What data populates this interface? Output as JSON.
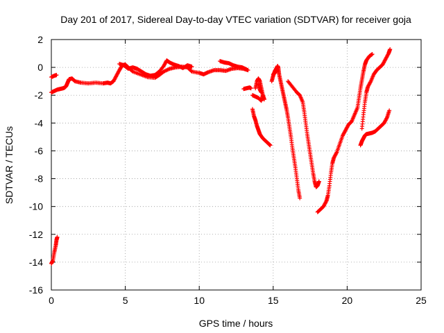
{
  "chart_data": {
    "type": "scatter",
    "title": "Day 201 of 2017, Sidereal Day-to-day VTEC variation (SDTVAR) for receiver goja",
    "xlabel": "GPS time / hours",
    "ylabel": "SDTVAR / TECUs",
    "xlim": [
      0,
      25
    ],
    "ylim": [
      -16,
      2
    ],
    "xticks": [
      "0",
      "5",
      "10",
      "15",
      "20",
      "25"
    ],
    "yticks": [
      "2",
      "0",
      "-2",
      "-4",
      "-6",
      "-8",
      "-10",
      "-12",
      "-14",
      "-16"
    ],
    "grid": true,
    "legend": "none",
    "marker": "+",
    "series": [
      {
        "color": "#ff0000",
        "segments": [
          [
            [
              0.0,
              -14.1
            ],
            [
              0.1,
              -13.9
            ],
            [
              0.2,
              -13.3
            ],
            [
              0.3,
              -12.8
            ],
            [
              0.35,
              -12.4
            ],
            [
              0.4,
              -12.2
            ]
          ],
          [
            [
              0.0,
              -1.8
            ],
            [
              0.2,
              -1.7
            ],
            [
              0.4,
              -1.6
            ],
            [
              0.6,
              -1.55
            ],
            [
              0.8,
              -1.5
            ],
            [
              0.9,
              -1.45
            ],
            [
              1.0,
              -1.35
            ],
            [
              1.1,
              -1.1
            ],
            [
              1.2,
              -0.85
            ],
            [
              1.4,
              -0.8
            ],
            [
              1.6,
              -1.0
            ],
            [
              2.0,
              -1.1
            ],
            [
              2.5,
              -1.15
            ],
            [
              3.0,
              -1.1
            ],
            [
              3.5,
              -1.15
            ],
            [
              3.8,
              -1.1
            ],
            [
              4.0,
              -1.15
            ],
            [
              4.2,
              -1.0
            ],
            [
              4.4,
              -0.6
            ],
            [
              4.6,
              -0.2
            ],
            [
              4.8,
              0.15
            ],
            [
              5.0,
              0.2
            ],
            [
              5.2,
              0.0
            ],
            [
              5.5,
              -0.3
            ],
            [
              6.0,
              -0.5
            ],
            [
              6.5,
              -0.7
            ],
            [
              7.0,
              -0.75
            ],
            [
              7.3,
              -0.55
            ],
            [
              7.6,
              -0.3
            ],
            [
              8.0,
              -0.1
            ],
            [
              8.4,
              0.0
            ],
            [
              8.8,
              0.05
            ],
            [
              9.2,
              0.0
            ],
            [
              9.5,
              -0.3
            ],
            [
              10.0,
              -0.4
            ],
            [
              10.3,
              -0.5
            ],
            [
              10.6,
              -0.35
            ],
            [
              11.0,
              -0.2
            ],
            [
              11.4,
              -0.2
            ],
            [
              11.8,
              -0.25
            ],
            [
              12.2,
              -0.1
            ],
            [
              12.6,
              -0.05
            ],
            [
              13.0,
              -0.1
            ],
            [
              13.3,
              -0.2
            ]
          ],
          [
            [
              0.0,
              -0.7
            ],
            [
              0.2,
              -0.6
            ],
            [
              0.35,
              -0.55
            ]
          ],
          [
            [
              4.6,
              0.25
            ],
            [
              4.9,
              0.15
            ],
            [
              5.2,
              -0.1
            ],
            [
              5.5,
              0.0
            ],
            [
              5.8,
              -0.1
            ],
            [
              6.1,
              -0.3
            ],
            [
              6.4,
              -0.5
            ],
            [
              6.7,
              -0.6
            ],
            [
              7.0,
              -0.55
            ],
            [
              7.3,
              -0.3
            ],
            [
              7.6,
              0.1
            ],
            [
              7.8,
              0.5
            ],
            [
              8.0,
              0.35
            ],
            [
              8.3,
              0.2
            ],
            [
              8.6,
              0.1
            ],
            [
              8.9,
              -0.05
            ],
            [
              9.2,
              0.15
            ],
            [
              9.5,
              0.05
            ]
          ],
          [
            [
              11.4,
              0.45
            ],
            [
              11.7,
              0.35
            ],
            [
              12.0,
              0.3
            ],
            [
              12.3,
              0.15
            ],
            [
              12.6,
              0.05
            ],
            [
              12.9,
              0.0
            ],
            [
              13.2,
              -0.15
            ]
          ],
          [
            [
              13.0,
              -1.55
            ],
            [
              13.2,
              -1.5
            ],
            [
              13.4,
              -1.45
            ],
            [
              13.5,
              -1.5
            ]
          ],
          [
            [
              13.8,
              -1.5
            ],
            [
              13.9,
              -1.0
            ],
            [
              14.0,
              -0.8
            ],
            [
              14.1,
              -1.0
            ],
            [
              14.2,
              -1.5
            ],
            [
              14.3,
              -2.0
            ],
            [
              14.4,
              -2.3
            ]
          ],
          [
            [
              13.6,
              -2.0
            ],
            [
              13.8,
              -2.1
            ],
            [
              14.0,
              -2.2
            ],
            [
              14.2,
              -2.4
            ],
            [
              14.3,
              -2.0
            ]
          ],
          [
            [
              13.6,
              -3.0
            ],
            [
              13.7,
              -3.5
            ],
            [
              13.8,
              -3.8
            ],
            [
              13.9,
              -4.2
            ],
            [
              14.0,
              -4.5
            ],
            [
              14.1,
              -4.8
            ],
            [
              14.3,
              -5.1
            ],
            [
              14.5,
              -5.3
            ],
            [
              14.7,
              -5.5
            ],
            [
              14.8,
              -5.6
            ]
          ],
          [
            [
              14.0,
              -1.2
            ],
            [
              14.1,
              -1.6
            ],
            [
              14.2,
              -1.8
            ]
          ],
          [
            [
              14.9,
              -1.0
            ],
            [
              15.0,
              -0.6
            ],
            [
              15.1,
              -0.3
            ],
            [
              15.2,
              -0.1
            ],
            [
              15.3,
              0.1
            ],
            [
              15.35,
              -0.05
            ],
            [
              15.4,
              -0.5
            ],
            [
              15.5,
              -1.0
            ],
            [
              15.6,
              -1.5
            ],
            [
              15.7,
              -2.0
            ],
            [
              15.8,
              -2.5
            ],
            [
              15.9,
              -3.0
            ],
            [
              16.0,
              -3.6
            ],
            [
              16.1,
              -4.3
            ],
            [
              16.2,
              -5.0
            ],
            [
              16.3,
              -5.8
            ],
            [
              16.4,
              -6.5
            ],
            [
              16.5,
              -7.2
            ],
            [
              16.6,
              -8.0
            ],
            [
              16.7,
              -8.8
            ],
            [
              16.8,
              -9.4
            ]
          ],
          [
            [
              15.0,
              -0.5
            ],
            [
              15.2,
              -0.3
            ],
            [
              15.3,
              -0.2
            ]
          ],
          [
            [
              16.0,
              -1.0
            ],
            [
              16.3,
              -1.4
            ],
            [
              16.6,
              -1.8
            ],
            [
              16.8,
              -2.0
            ],
            [
              17.0,
              -2.5
            ],
            [
              17.1,
              -3.2
            ],
            [
              17.2,
              -4.0
            ],
            [
              17.3,
              -4.8
            ],
            [
              17.4,
              -5.5
            ],
            [
              17.5,
              -6.2
            ],
            [
              17.6,
              -6.9
            ],
            [
              17.7,
              -7.6
            ],
            [
              17.8,
              -8.2
            ],
            [
              17.9,
              -8.6
            ],
            [
              18.0,
              -8.5
            ],
            [
              18.1,
              -8.2
            ]
          ],
          [
            [
              18.0,
              -10.4
            ],
            [
              18.2,
              -10.2
            ],
            [
              18.4,
              -10.0
            ],
            [
              18.6,
              -9.6
            ],
            [
              18.7,
              -9.2
            ],
            [
              18.8,
              -8.5
            ],
            [
              18.9,
              -7.6
            ],
            [
              19.0,
              -6.9
            ],
            [
              19.1,
              -6.5
            ],
            [
              19.3,
              -6.1
            ],
            [
              19.5,
              -5.5
            ],
            [
              19.7,
              -4.9
            ],
            [
              19.9,
              -4.5
            ],
            [
              20.1,
              -4.1
            ],
            [
              20.3,
              -3.9
            ],
            [
              20.5,
              -3.4
            ],
            [
              20.7,
              -2.9
            ],
            [
              20.8,
              -2.2
            ],
            [
              20.9,
              -1.5
            ],
            [
              21.0,
              -0.9
            ],
            [
              21.1,
              -0.3
            ],
            [
              21.2,
              0.2
            ],
            [
              21.3,
              0.5
            ],
            [
              21.5,
              0.8
            ],
            [
              21.7,
              0.95
            ]
          ],
          [
            [
              20.9,
              -5.6
            ],
            [
              21.0,
              -5.3
            ],
            [
              21.1,
              -5.1
            ],
            [
              21.2,
              -4.9
            ],
            [
              21.3,
              -4.8
            ],
            [
              21.5,
              -4.75
            ],
            [
              21.7,
              -4.7
            ],
            [
              21.9,
              -4.6
            ],
            [
              22.1,
              -4.4
            ],
            [
              22.3,
              -4.2
            ],
            [
              22.5,
              -4.0
            ],
            [
              22.7,
              -3.6
            ],
            [
              22.85,
              -3.1
            ]
          ],
          [
            [
              21.0,
              -4.4
            ],
            [
              21.1,
              -3.4
            ],
            [
              21.2,
              -2.5
            ],
            [
              21.3,
              -1.8
            ],
            [
              21.4,
              -1.4
            ],
            [
              21.6,
              -1.0
            ],
            [
              21.8,
              -0.5
            ],
            [
              22.0,
              -0.2
            ],
            [
              22.2,
              0.0
            ],
            [
              22.4,
              0.2
            ],
            [
              22.6,
              0.6
            ],
            [
              22.8,
              1.0
            ],
            [
              22.9,
              1.3
            ]
          ]
        ]
      }
    ]
  }
}
